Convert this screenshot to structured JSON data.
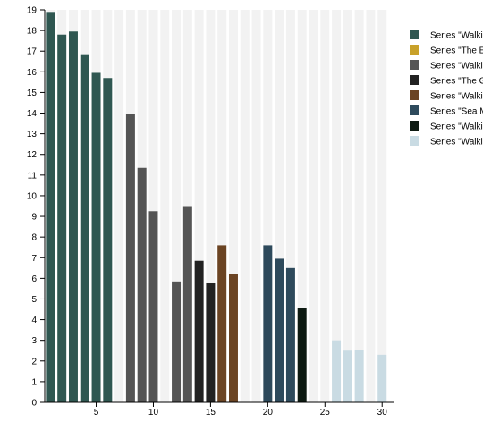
{
  "chart_data": {
    "type": "bar",
    "title": "",
    "xlabel": "",
    "ylabel": "",
    "ylim": [
      0,
      19
    ],
    "xlim": [
      0.5,
      31
    ],
    "x_ticks": [
      5,
      10,
      15,
      20,
      25,
      30
    ],
    "y_ticks": [
      0,
      1,
      2,
      3,
      4,
      5,
      6,
      7,
      8,
      9,
      10,
      11,
      12,
      13,
      14,
      15,
      16,
      17,
      18,
      19
    ],
    "grid": "vertical bands per category",
    "legend_position": "right",
    "series": [
      {
        "name": "Series \"Walki",
        "color": "#2f5751",
        "points": [
          [
            1,
            18.9
          ],
          [
            2,
            17.8
          ],
          [
            3,
            17.95
          ],
          [
            4,
            16.85
          ],
          [
            5,
            15.95
          ],
          [
            6,
            15.7
          ]
        ]
      },
      {
        "name": "Series \"The E",
        "color": "#c8a12a",
        "points": []
      },
      {
        "name": "Series \"Walki",
        "color": "#555555",
        "points": [
          [
            8,
            13.95
          ],
          [
            9,
            11.35
          ],
          [
            10,
            9.25
          ],
          [
            12,
            5.85
          ],
          [
            13,
            9.5
          ]
        ]
      },
      {
        "name": "Series \"The G",
        "color": "#222222",
        "points": [
          [
            14,
            6.85
          ],
          [
            15,
            5.8
          ]
        ]
      },
      {
        "name": "Series \"Walki",
        "color": "#6b4423",
        "points": [
          [
            16,
            7.6
          ],
          [
            17,
            6.2
          ]
        ]
      },
      {
        "name": "Series \"Sea M",
        "color": "#2e4a5c",
        "points": [
          [
            20,
            7.6
          ],
          [
            21,
            6.95
          ],
          [
            22,
            6.5
          ]
        ]
      },
      {
        "name": "Series \"Walki",
        "color": "#0d1a12",
        "points": [
          [
            23,
            4.55
          ]
        ]
      },
      {
        "name": "Series \"Walki",
        "color": "#c9dbe3",
        "points": [
          [
            26,
            3.0
          ],
          [
            27,
            2.5
          ],
          [
            28,
            2.55
          ],
          [
            30,
            2.3
          ]
        ]
      }
    ]
  }
}
